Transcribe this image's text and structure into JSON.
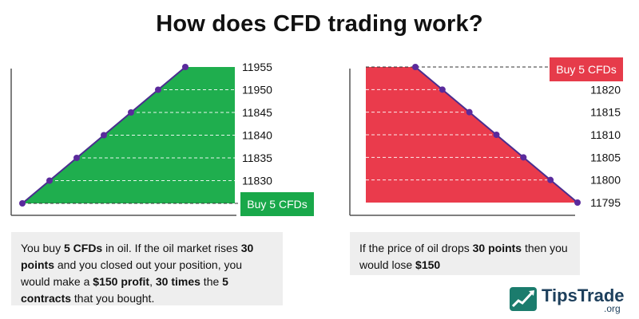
{
  "title": "How does CFD trading work?",
  "colors": {
    "gain_fill": "#1fae4e",
    "loss_fill": "#ea3b4c",
    "line": "#4b2d8f",
    "dot": "#5a2a9c",
    "badge_gain": "#19a84a",
    "badge_loss": "#e63b4a",
    "box_bg": "#eeeeee",
    "logo_dark": "#1d3f5c",
    "logo_green": "#1b7c6d"
  },
  "left_panel": {
    "tick_labels": [
      "11955",
      "11950",
      "11845",
      "11840",
      "11835",
      "11830"
    ],
    "badge": "Buy 5 CFDs",
    "text_parts": [
      {
        "t": "You buy ",
        "b": false
      },
      {
        "t": "5 CFDs",
        "b": true
      },
      {
        "t": " in oil. If the oil market rises ",
        "b": false
      },
      {
        "t": "30 points",
        "b": true
      },
      {
        "t": " and you closed out your position, you would make a ",
        "b": false
      },
      {
        "t": "$150 profit",
        "b": true
      },
      {
        "t": ", ",
        "b": false
      },
      {
        "t": "30 times",
        "b": true
      },
      {
        "t": " the ",
        "b": false
      },
      {
        "t": "5 contracts",
        "b": true
      },
      {
        "t": " that you bought.",
        "b": false
      }
    ]
  },
  "right_panel": {
    "badge": "Buy 5 CFDs",
    "tick_labels": [
      "11820",
      "11815",
      "11810",
      "11805",
      "11800",
      "11795"
    ],
    "text_parts": [
      {
        "t": "If the price of oil drops ",
        "b": false
      },
      {
        "t": "30 points",
        "b": true
      },
      {
        "t": " then you would lose ",
        "b": false
      },
      {
        "t": "$150",
        "b": true
      }
    ]
  },
  "logo": {
    "icon": "rising-chart-icon",
    "name": "TipsTrade",
    "suffix": ".org"
  }
}
